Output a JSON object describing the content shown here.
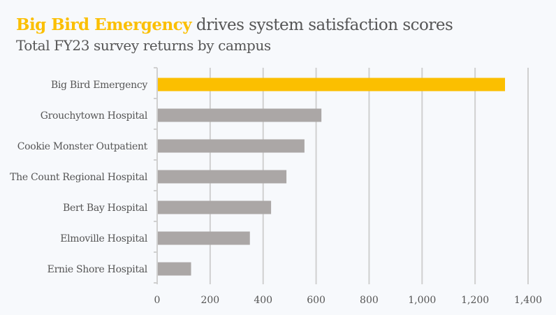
{
  "chart_data": {
    "type": "bar",
    "orientation": "horizontal",
    "title": {
      "highlight": "Big Bird Emergency",
      "rest": " drives system satisfaction scores"
    },
    "subtitle": "Total FY23 survey returns by campus",
    "xlabel": "",
    "ylabel": "",
    "categories": [
      "Big Bird Emergency",
      "Grouchytown Hospital",
      "Cookie Monster Outpatient",
      "The Count Regional Hospital",
      "Bert Bay Hospital",
      "Elmoville Hospital",
      "Ernie Shore Hospital"
    ],
    "values": [
      1313,
      620,
      556,
      488,
      430,
      350,
      128
    ],
    "highlight_index": 0,
    "xlim": [
      0,
      1400
    ],
    "xticks": [
      0,
      200,
      400,
      600,
      800,
      1000,
      1200,
      1400
    ],
    "xtick_labels": [
      "0",
      "200",
      "400",
      "600",
      "800",
      "1,000",
      "1,200",
      "1,400"
    ],
    "grid": "vertical",
    "legend": "none",
    "colors": {
      "highlight": "#fbbf00",
      "default": "#aba7a6",
      "grid": "#d0d0d0",
      "text": "#555555"
    }
  }
}
